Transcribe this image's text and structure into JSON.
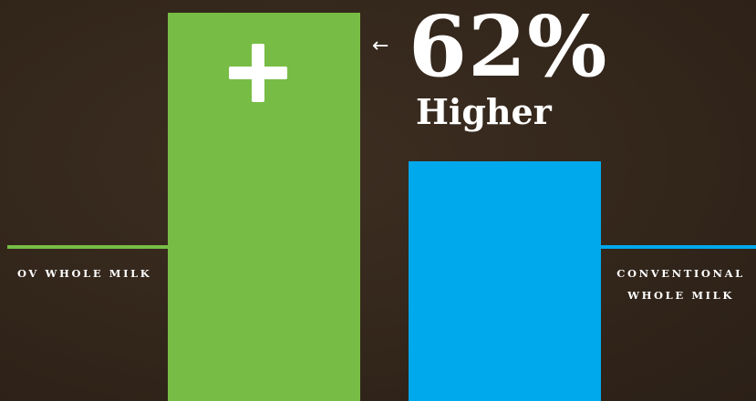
{
  "chart_data": {
    "type": "bar",
    "categories": [
      "OV WHOLE MILK",
      "CONVENTIONAL WHOLE MILK"
    ],
    "values": [
      162,
      100
    ],
    "colors": [
      "#77bd45",
      "#00a9ec"
    ],
    "annotation": {
      "value": "62%",
      "text": "Higher",
      "icon": "arrow-left-icon",
      "bar_icon": "plus-icon"
    },
    "labels": {
      "ov": "OV WHOLE MILK",
      "conv_line1": "CONVENTIONAL",
      "conv_line2": "WHOLE MILK"
    },
    "axis_visible": false,
    "grid": false
  },
  "colors": {
    "background": "#33261b",
    "ov": "#77bd45",
    "conventional": "#00a9ec",
    "text": "#ffffff"
  }
}
